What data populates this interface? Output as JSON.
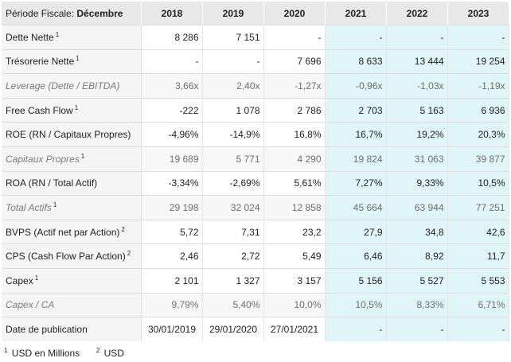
{
  "header": {
    "label_prefix": "Période Fiscale: ",
    "label_period": "Décembre",
    "years": [
      "2018",
      "2019",
      "2020",
      "2021",
      "2022",
      "2023"
    ]
  },
  "rows": [
    {
      "label": "Dette Nette",
      "note": "1",
      "italic": false,
      "values": [
        "8 286",
        "7 151",
        "-",
        "-",
        "-",
        "-"
      ]
    },
    {
      "label": "Trésorerie Nette",
      "note": "1",
      "italic": false,
      "values": [
        "-",
        "-",
        "7 696",
        "8 633",
        "13 444",
        "19 254"
      ]
    },
    {
      "label": "Leverage (Dette / EBITDA)",
      "note": "",
      "italic": true,
      "values": [
        "3,66x",
        "2,40x",
        "-1,27x",
        "-0,96x",
        "-1,03x",
        "-1,19x"
      ]
    },
    {
      "label": "Free Cash Flow",
      "note": "1",
      "italic": false,
      "values": [
        "-222",
        "1 078",
        "2 786",
        "2 703",
        "5 163",
        "6 936"
      ]
    },
    {
      "label": "ROE (RN / Capitaux Propres)",
      "note": "",
      "italic": false,
      "values": [
        "-4,96%",
        "-14,9%",
        "16,8%",
        "16,7%",
        "19,2%",
        "20,3%"
      ]
    },
    {
      "label": "Capitaux Propres",
      "note": "1",
      "italic": true,
      "values": [
        "19 689",
        "5 771",
        "4 290",
        "19 824",
        "31 063",
        "39 877"
      ]
    },
    {
      "label": "ROA (RN / Total Actif)",
      "note": "",
      "italic": false,
      "values": [
        "-3,34%",
        "-2,69%",
        "5,61%",
        "7,27%",
        "9,33%",
        "10,5%"
      ]
    },
    {
      "label": "Total Actifs",
      "note": "1",
      "italic": true,
      "values": [
        "29 198",
        "32 024",
        "12 858",
        "45 664",
        "63 944",
        "77 251"
      ]
    },
    {
      "label": "BVPS (Actif net par Action)",
      "note": "2",
      "italic": false,
      "values": [
        "5,72",
        "7,31",
        "23,2",
        "27,9",
        "34,8",
        "42,6"
      ]
    },
    {
      "label": "CPS (Cash Flow Par Action)",
      "note": "2",
      "italic": false,
      "values": [
        "2,46",
        "2,72",
        "5,49",
        "6,46",
        "8,92",
        "11,7"
      ]
    },
    {
      "label": "Capex",
      "note": "1",
      "italic": false,
      "values": [
        "2 101",
        "1 327",
        "3 157",
        "5 156",
        "5 527",
        "5 553"
      ]
    },
    {
      "label": "Capex / CA",
      "note": "",
      "italic": true,
      "values": [
        "9,79%",
        "5,40%",
        "10,0%",
        "10,5%",
        "8,33%",
        "6,71%"
      ]
    },
    {
      "label": "Date de publication",
      "note": "",
      "italic": false,
      "values": [
        "30/01/2019",
        "29/01/2020",
        "27/01/2021",
        "-",
        "-",
        "-"
      ]
    }
  ],
  "footnotes": [
    {
      "mark": "1",
      "text": "USD en Millions"
    },
    {
      "mark": "2",
      "text": "USD"
    }
  ],
  "colors": {
    "estimate_bg": "#dff5f7",
    "header_bg": "#e8e8e8"
  }
}
